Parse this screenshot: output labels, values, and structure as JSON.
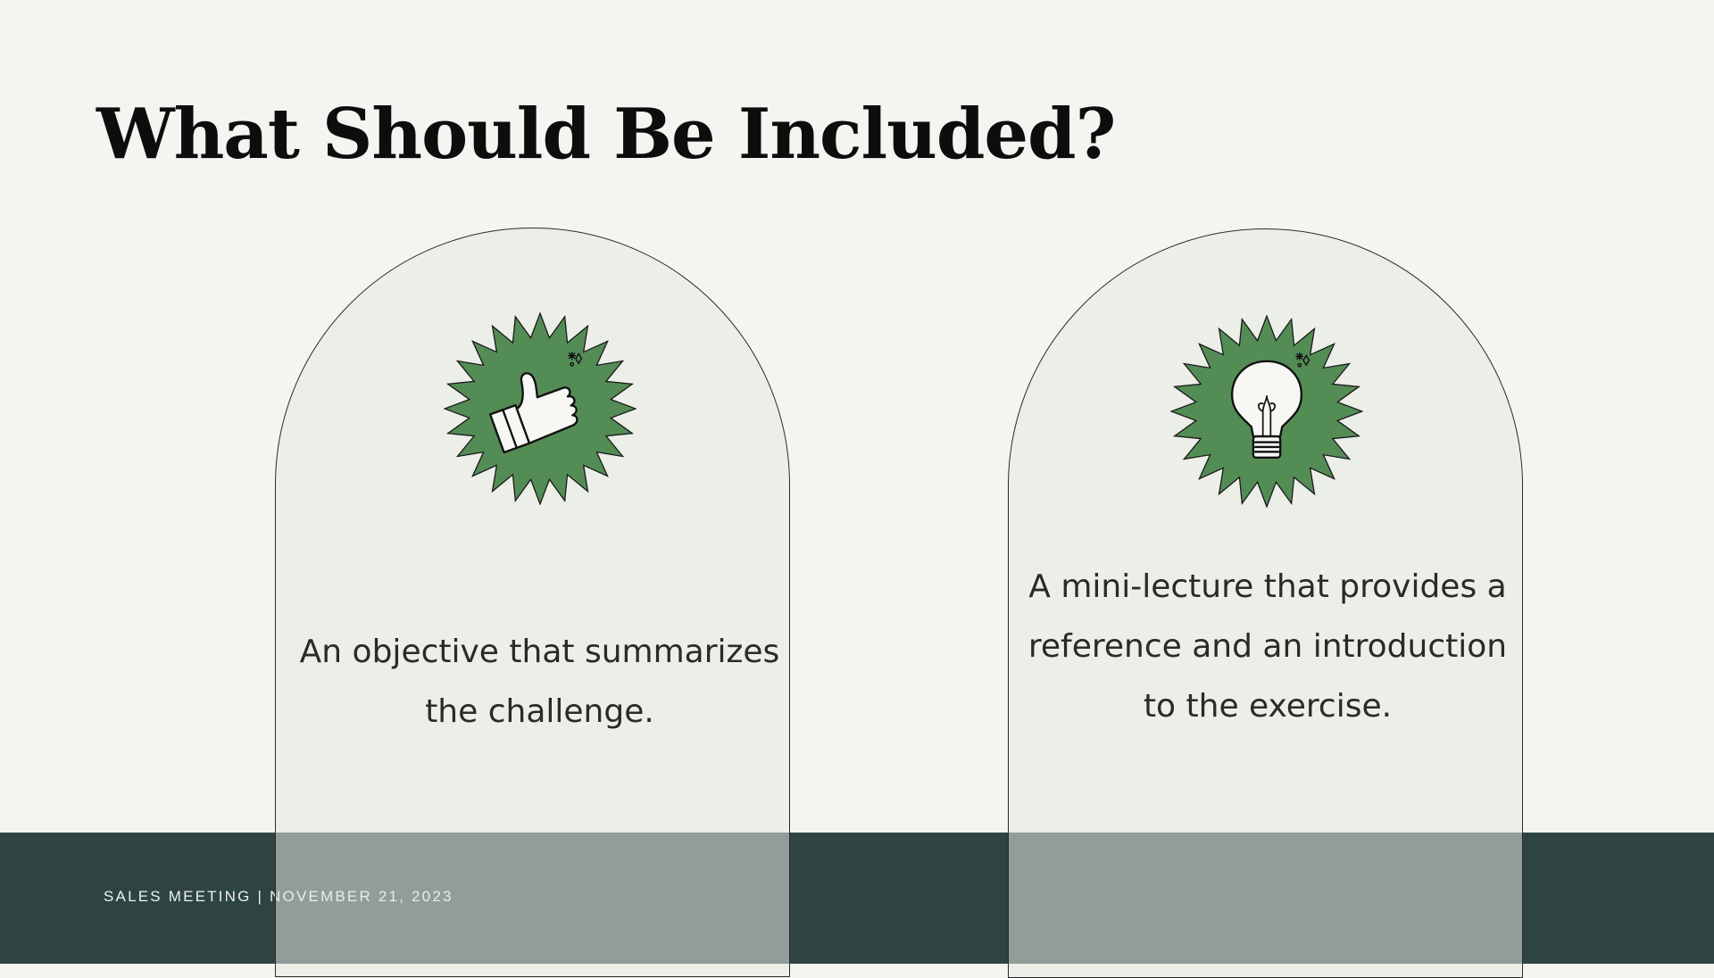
{
  "slide": {
    "title": "What Should Be Included?",
    "footer": "SALES MEETING | NOVEMBER 21, 2023",
    "colors": {
      "background": "#f4f5f0",
      "footer_band": "#2e4443",
      "badge_green": "#548c56",
      "arch_fill": "#e6e7e1"
    },
    "cards": [
      {
        "icon": "thumbs-up-icon",
        "text": "An objective that summarizes the challenge."
      },
      {
        "icon": "lightbulb-icon",
        "text": "A mini-lecture that provides a reference and an introduction to the exercise."
      }
    ]
  }
}
